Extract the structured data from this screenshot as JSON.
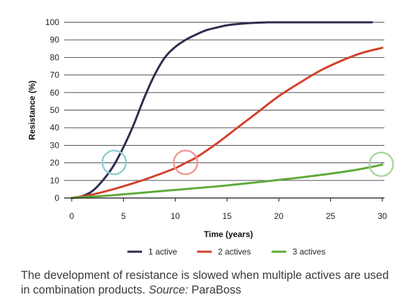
{
  "chart_data": {
    "type": "line",
    "title": "",
    "xlabel": "Time (years)",
    "ylabel": "Resistance (%)",
    "xlim": [
      0,
      30
    ],
    "ylim": [
      0,
      100
    ],
    "xticks": [
      0,
      5,
      10,
      15,
      20,
      25,
      30
    ],
    "yticks": [
      0,
      10,
      20,
      30,
      40,
      50,
      60,
      70,
      80,
      90,
      100
    ],
    "grid": "horizontal",
    "legend_position": "bottom",
    "series": [
      {
        "name": "1 active",
        "color": "#2b2d4e",
        "x": [
          0,
          1,
          2,
          3,
          4,
          5,
          6,
          7,
          8,
          9,
          10,
          11,
          12,
          13,
          14,
          15,
          16,
          17,
          18,
          19,
          20,
          22,
          24,
          26,
          28,
          29
        ],
        "y": [
          0,
          1,
          4,
          10,
          18,
          29,
          42,
          57,
          70,
          80,
          86,
          90,
          93,
          95.5,
          97,
          98.3,
          99,
          99.5,
          99.8,
          100,
          100,
          100,
          100,
          100,
          100,
          100
        ]
      },
      {
        "name": "2 actives",
        "color": "#d2412b",
        "x": [
          0,
          2,
          4,
          6,
          8,
          10,
          11,
          12,
          14,
          16,
          18,
          20,
          22,
          24,
          26,
          28,
          30
        ],
        "y": [
          0,
          2,
          5,
          8.5,
          12.5,
          17,
          20,
          23,
          31,
          40,
          49,
          58,
          65.5,
          72.5,
          78,
          82.5,
          85.5
        ]
      },
      {
        "name": "3 actives",
        "color": "#5eaa3a",
        "x": [
          0,
          2,
          4,
          6,
          8,
          10,
          12,
          14,
          16,
          18,
          20,
          22,
          24,
          26,
          28,
          30
        ],
        "y": [
          0,
          0.8,
          1.6,
          2.6,
          3.6,
          4.6,
          5.6,
          6.6,
          7.8,
          9,
          10.3,
          11.6,
          13.1,
          14.7,
          16.6,
          19
        ]
      }
    ],
    "annotations": [
      {
        "type": "circle",
        "x": 4.1,
        "y": 20.3,
        "color": "#8fd1d1"
      },
      {
        "type": "circle",
        "x": 11,
        "y": 20.3,
        "color": "#ef9a94"
      },
      {
        "type": "circle",
        "x": 29.9,
        "y": 19.2,
        "color": "#a9d69d"
      }
    ]
  },
  "caption": {
    "text": "The development of resistance is slowed when multiple actives are used in combination products. ",
    "source_label": "Source:",
    "source_name": " ParaBoss"
  }
}
